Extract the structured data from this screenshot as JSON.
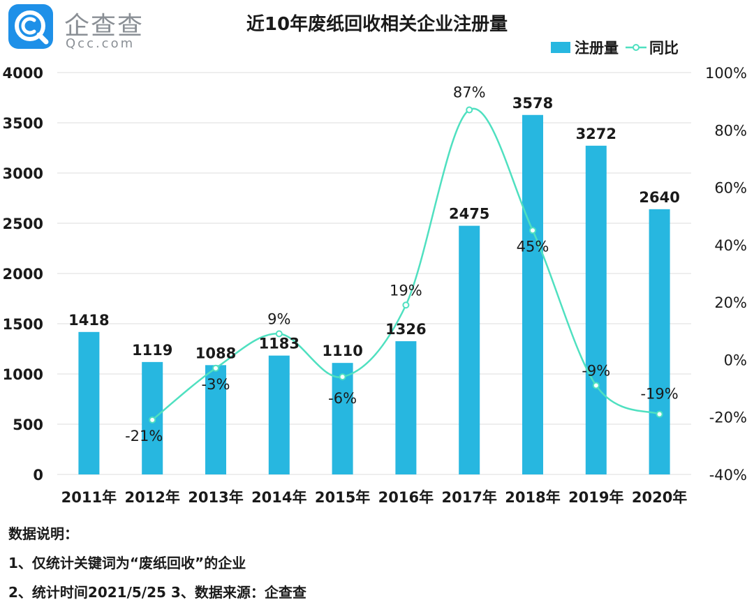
{
  "logo": {
    "name_cn": "企查查",
    "domain": "Qcc.com"
  },
  "chart_data": {
    "type": "bar",
    "title": "近10年废纸回收相关企业注册量",
    "categories": [
      "2011年",
      "2012年",
      "2013年",
      "2014年",
      "2015年",
      "2016年",
      "2017年",
      "2018年",
      "2019年",
      "2020年"
    ],
    "series": [
      {
        "name": "注册量",
        "type": "bar",
        "axis": "left",
        "values": [
          1418,
          1119,
          1088,
          1183,
          1110,
          1326,
          2475,
          3578,
          3272,
          2640
        ],
        "labels": [
          "1418",
          "1119",
          "1088",
          "1183",
          "1110",
          "1326",
          "2475",
          "3578",
          "3272",
          "2640"
        ]
      },
      {
        "name": "同比",
        "type": "line",
        "axis": "right",
        "values": [
          null,
          -21,
          -3,
          9,
          -6,
          19,
          87,
          45,
          -9,
          -19
        ],
        "labels": [
          "",
          "-21%",
          "-3%",
          "9%",
          "-6%",
          "19%",
          "87%",
          "45%",
          "-9%",
          "-19%"
        ]
      }
    ],
    "y_left": {
      "min": 0,
      "max": 4000,
      "ticks": [
        "0",
        "500",
        "1000",
        "1500",
        "2000",
        "2500",
        "3000",
        "3500",
        "4000"
      ]
    },
    "y_right": {
      "min": -40,
      "max": 100,
      "ticks": [
        "-40%",
        "-20%",
        "0%",
        "20%",
        "40%",
        "60%",
        "80%",
        "100%"
      ]
    },
    "grid": true,
    "legend_position": "top-right",
    "colors": {
      "bar": "#27b7e0",
      "line": "#4fe0c0",
      "grid": "#e3e3e3"
    }
  },
  "notes": {
    "heading": "数据说明：",
    "line1": "1、仅统计关键词为“废纸回收”的企业",
    "line2": "2、统计时间2021/5/25   3、数据来源：企查查"
  }
}
